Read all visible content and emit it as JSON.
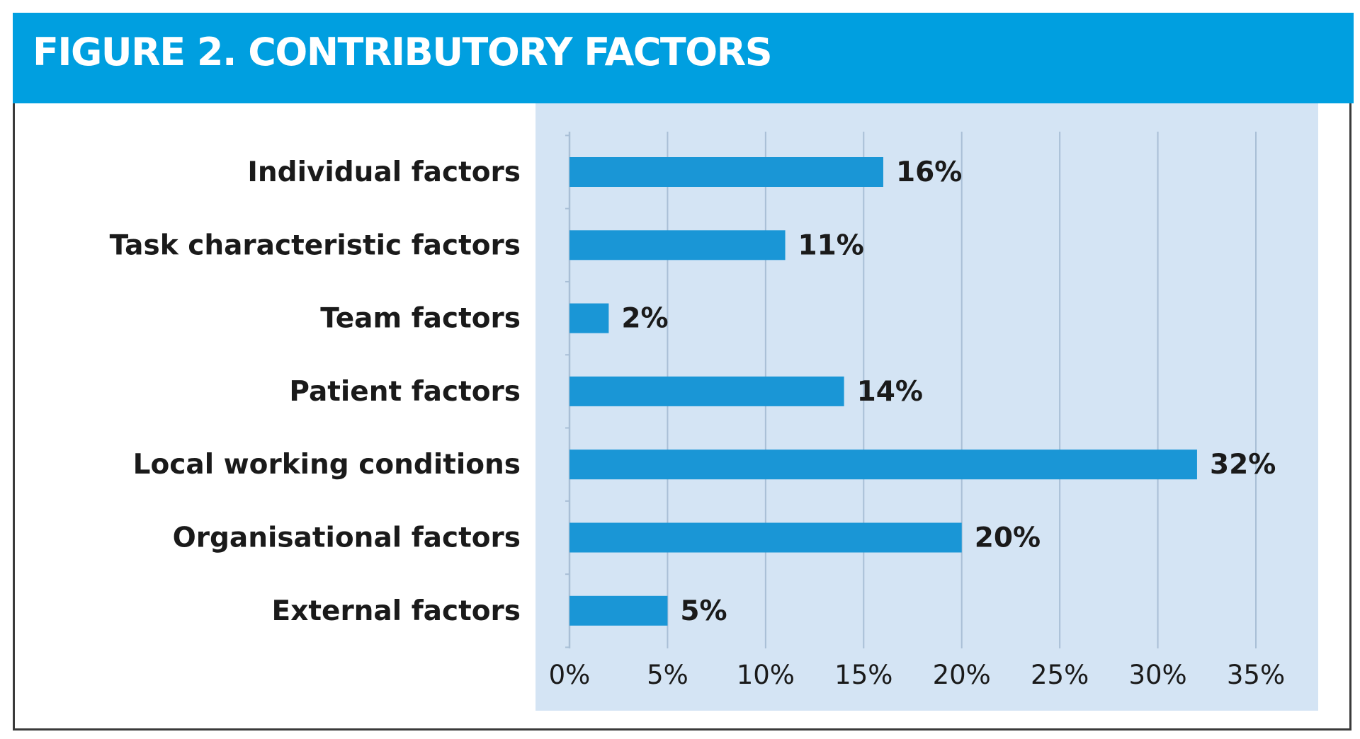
{
  "figure": {
    "title": "FIGURE 2. CONTRIBUTORY FACTORS"
  },
  "colors": {
    "title_bar": "#009fe0",
    "plot_background": "#d4e4f4",
    "bar": "#1a96d6",
    "gridline": "#a9bfd6",
    "text": "#1a1a1a"
  },
  "chart_data": {
    "type": "bar",
    "orientation": "horizontal",
    "title": "FIGURE 2. CONTRIBUTORY FACTORS",
    "categories": [
      "Individual factors",
      "Task characteristic factors",
      "Team factors",
      "Patient factors",
      "Local working conditions",
      "Organisational factors",
      "External factors"
    ],
    "values": [
      16,
      11,
      2,
      14,
      32,
      20,
      5
    ],
    "value_labels": [
      "16%",
      "11%",
      "2%",
      "14%",
      "32%",
      "20%",
      "5%"
    ],
    "xlim": [
      0,
      35
    ],
    "xticks": [
      0,
      5,
      10,
      15,
      20,
      25,
      30,
      35
    ],
    "xtick_labels": [
      "0%",
      "5%",
      "10%",
      "15%",
      "20%",
      "25%",
      "30%",
      "35%"
    ],
    "unit": "%",
    "grid": "vertical",
    "legend": "none"
  }
}
